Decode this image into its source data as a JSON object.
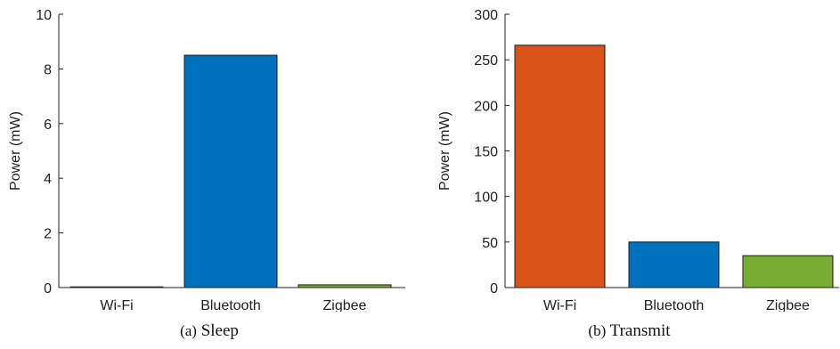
{
  "chart_data": [
    {
      "type": "bar",
      "caption_tag": "(a)",
      "caption_title": "Sleep",
      "categories": [
        "Wi-Fi",
        "Bluetooth",
        "Zigbee"
      ],
      "values": [
        0.02,
        8.5,
        0.1
      ],
      "colors": [
        "#D95319",
        "#0072BD",
        "#77AC30"
      ],
      "ylabel": "Power (mW)",
      "ylim": [
        0,
        10
      ],
      "yticks": [
        0,
        2,
        4,
        6,
        8,
        10
      ],
      "grid": false
    },
    {
      "type": "bar",
      "caption_tag": "(b)",
      "caption_title": "Transmit",
      "categories": [
        "Wi-Fi",
        "Bluetooth",
        "Zigbee"
      ],
      "values": [
        266,
        50,
        35
      ],
      "colors": [
        "#D95319",
        "#0072BD",
        "#77AC30"
      ],
      "ylabel": "Power (mW)",
      "ylim": [
        0,
        300
      ],
      "yticks": [
        0,
        50,
        100,
        150,
        200,
        250,
        300
      ],
      "grid": false
    }
  ]
}
